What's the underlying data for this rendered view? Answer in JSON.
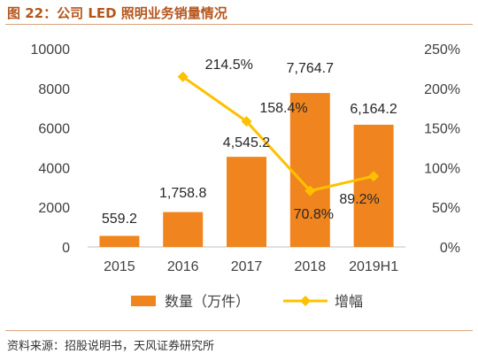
{
  "figure_title": "图 22：公司 LED 照明业务销量情况",
  "source_note": "资料来源：招股说明书，天风证券研究所",
  "chart_data": {
    "type": "bar",
    "categories": [
      "2015",
      "2016",
      "2017",
      "2018",
      "2019H1"
    ],
    "series": [
      {
        "name": "数量（万件）",
        "type": "bar",
        "axis": "left",
        "color": "#f0851f",
        "values": [
          559.2,
          1758.8,
          4545.2,
          7764.7,
          6164.2
        ],
        "labels": [
          "559.2",
          "1,758.8",
          "4,545.2",
          "7,764.7",
          "6,164.2"
        ]
      },
      {
        "name": "增幅",
        "type": "line",
        "axis": "right",
        "color": "#ffc000",
        "values": [
          null,
          214.5,
          158.4,
          70.8,
          89.2
        ],
        "labels": [
          "",
          "214.5%",
          "158.4%",
          "70.8%",
          "89.2%"
        ]
      }
    ],
    "y_left": {
      "lim": [
        0,
        10000
      ],
      "ticks": [
        "0",
        "2000",
        "4000",
        "6000",
        "8000",
        "10000"
      ]
    },
    "y_right": {
      "lim": [
        0,
        250
      ],
      "ticks": [
        "0%",
        "50%",
        "100%",
        "150%",
        "200%",
        "250%"
      ]
    },
    "legend_position": "bottom"
  }
}
